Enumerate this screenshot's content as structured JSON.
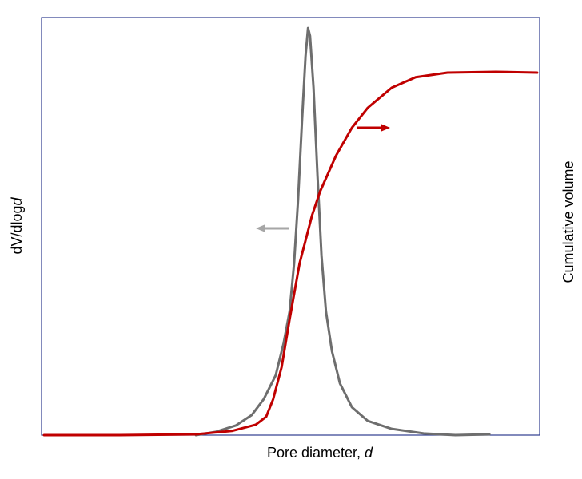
{
  "chart_data": {
    "type": "line",
    "x_label": [
      "Pore diameter, ",
      "d"
    ],
    "y_label": [
      "dV/dlog",
      "d"
    ],
    "y2_label": "Cumulative volume",
    "xlim": [
      0,
      100
    ],
    "ylim": [
      0,
      100
    ],
    "y2lim": [
      0,
      100
    ],
    "series": [
      {
        "color": "#6e6e6e",
        "x": [
          31.0,
          35.0,
          39.0,
          42.2,
          44.6,
          47.0,
          48.6,
          49.8,
          50.7,
          51.5,
          52.3,
          53.0,
          53.5,
          53.9,
          54.6,
          55.4,
          56.2,
          57.1,
          58.3,
          59.9,
          62.3,
          65.5,
          70.3,
          76.7,
          83.1,
          89.9
        ],
        "values": [
          0,
          0.8,
          2.3,
          4.8,
          8.6,
          14.3,
          22.0,
          29.6,
          41.1,
          56.4,
          75.5,
          90.8,
          97.5,
          95.6,
          83.2,
          62.1,
          43.0,
          29.6,
          20.1,
          12.4,
          6.7,
          3.4,
          1.5,
          0.4,
          0,
          0.2
        ]
      },
      {
        "color": "#c00000",
        "axis": "y2",
        "x": [
          0.5,
          15.7,
          31.0,
          38.2,
          43.0,
          45.1,
          46.5,
          48.2,
          49.8,
          51.8,
          54.3,
          55.9,
          59.1,
          62.3,
          65.5,
          70.3,
          75.1,
          81.5,
          91.2,
          99.5
        ],
        "values": [
          0,
          0,
          0.2,
          1.0,
          2.5,
          4.4,
          8.6,
          16.3,
          27.7,
          41.1,
          52.6,
          58.3,
          66.9,
          73.6,
          78.4,
          83.2,
          85.7,
          86.8,
          87.0,
          86.8
        ]
      }
    ]
  }
}
